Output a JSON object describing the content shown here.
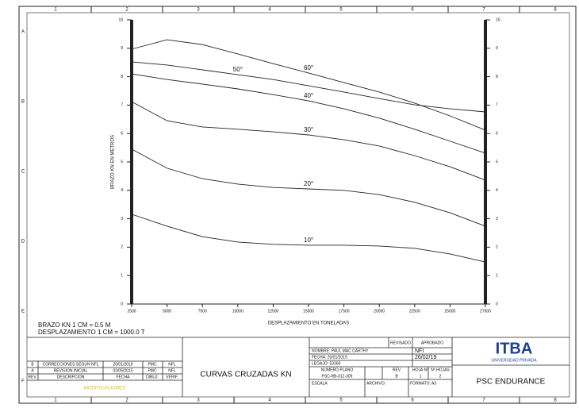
{
  "chart_data": {
    "type": "line",
    "xlabel": "DESPLAZAMIENTO EN TONELADAS",
    "ylabel": "BRAZO KN EN METROS",
    "x": [
      2500,
      5000,
      7500,
      10000,
      12500,
      15000,
      17500,
      20000,
      22500,
      25000,
      27500
    ],
    "xlim": [
      2500,
      27500
    ],
    "xticks": [
      2500,
      5000,
      7500,
      10000,
      12500,
      15000,
      17500,
      20000,
      22500,
      25000,
      27500
    ],
    "ylim": [
      0,
      10
    ],
    "yticks": [
      0,
      1,
      2,
      3,
      4,
      5,
      6,
      7,
      8,
      9,
      10
    ],
    "series": [
      {
        "name": "10°",
        "color": "#222",
        "values": [
          3.16,
          2.74,
          2.37,
          2.18,
          2.1,
          2.07,
          2.07,
          2.04,
          1.96,
          1.76,
          1.48
        ]
      },
      {
        "name": "20°",
        "color": "#222",
        "values": [
          5.45,
          4.78,
          4.41,
          4.22,
          4.1,
          4.05,
          4.0,
          3.85,
          3.58,
          3.21,
          2.74
        ]
      },
      {
        "name": "30°",
        "color": "#222",
        "values": [
          7.12,
          6.45,
          6.23,
          6.15,
          6.06,
          5.95,
          5.78,
          5.56,
          5.22,
          4.83,
          4.36
        ]
      },
      {
        "name": "40°",
        "color": "#222",
        "values": [
          8.1,
          7.9,
          7.74,
          7.57,
          7.37,
          7.15,
          6.87,
          6.54,
          6.15,
          5.73,
          5.31
        ]
      },
      {
        "name": "50°",
        "color": "#222",
        "values": [
          8.52,
          8.41,
          8.24,
          8.07,
          7.9,
          7.68,
          7.46,
          7.23,
          7.01,
          6.87,
          6.76
        ]
      },
      {
        "name": "60°",
        "color": "#222",
        "values": [
          8.97,
          9.3,
          9.13,
          8.8,
          8.46,
          8.13,
          7.79,
          7.46,
          7.07,
          6.62,
          6.12
        ]
      }
    ]
  },
  "frame": {
    "columns": [
      "1",
      "2",
      "3",
      "4",
      "5",
      "6",
      "7",
      "8"
    ],
    "rows": [
      "A",
      "B",
      "C",
      "D",
      "E",
      "F"
    ]
  },
  "scale_notes": [
    "BRAZO KN       1 CM  =      0.5  M",
    "DESPLAZAMIENTO   1 CM  =   1000.0  T"
  ],
  "revisions": {
    "rows": [
      [
        "B",
        "CORRECCIONES SEGUN NFL",
        "20/01/2019",
        "PMC",
        "NFL"
      ],
      [
        "A",
        "REVISION INICIAL",
        "02/05/2015",
        "PMC",
        "NFL"
      ],
      [
        "REV.",
        "DESCRIPCION",
        "FECHA",
        "DIBUJ.",
        "VERIF."
      ]
    ],
    "caption": "MODIFICACIONES"
  },
  "drawing_title": "CURVAS CRUZADAS KN",
  "info": {
    "reviewed": "REVISADO",
    "approved": "APROBADO",
    "approver": "NFI",
    "approval_date": "26/02/19",
    "name": "NOMBRE: PAUL MAC CARTHY",
    "date": "FECHA: 20/01/2019",
    "legajo": "LEGAJO: 53360",
    "headers": [
      "NUMERO PLANO",
      "REV",
      "HOJA Nº",
      "Nº HOJAS"
    ],
    "values": [
      "PSC-RB-012-309",
      "B",
      "1",
      "2"
    ],
    "scale": "ESCALA",
    "file": "ARCHIVO:",
    "format": "FORMATO: A3"
  },
  "logo": {
    "name": "ITBA",
    "tagline": "UNIVERSIDAD PRIVADA"
  },
  "project": "PSC ENDURANCE"
}
